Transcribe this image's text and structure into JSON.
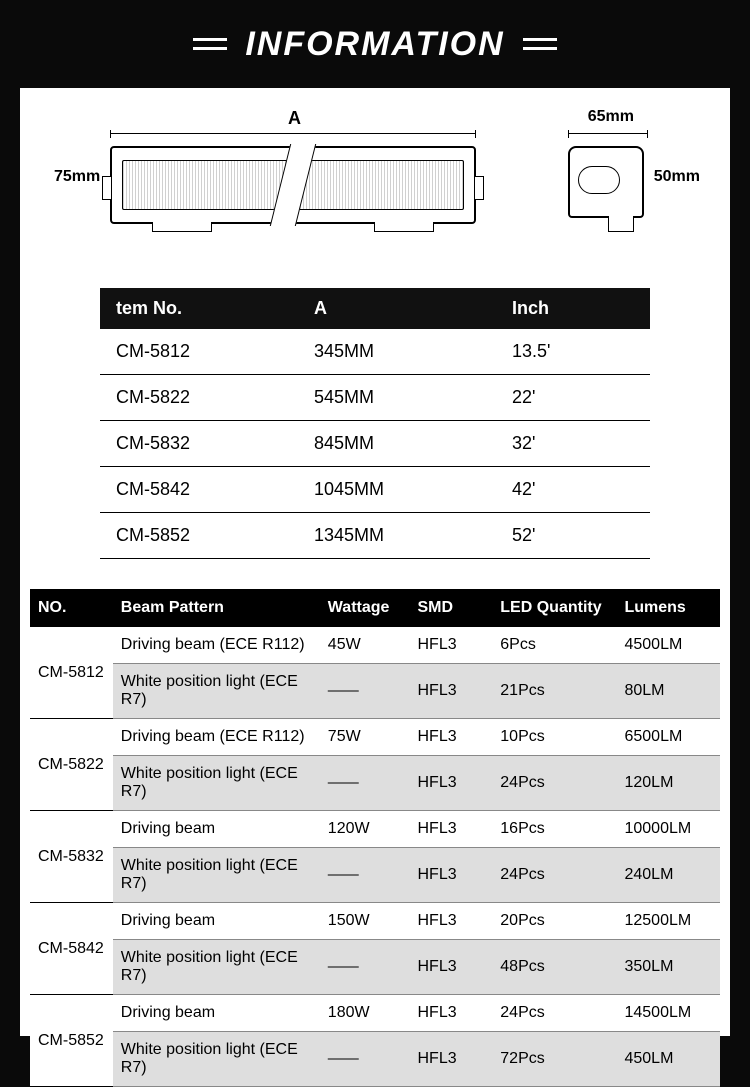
{
  "title": "INFORMATION",
  "diagram": {
    "label_A": "A",
    "label_65mm": "65mm",
    "label_75mm": "75mm",
    "label_50mm": "50mm"
  },
  "table1": {
    "headers": {
      "c1": "tem No.",
      "c2": "A",
      "c3": "Inch"
    },
    "rows": [
      {
        "no": "CM-5812",
        "a": "345MM",
        "inch": "13.5'"
      },
      {
        "no": "CM-5822",
        "a": "545MM",
        "inch": "22'"
      },
      {
        "no": "CM-5832",
        "a": "845MM",
        "inch": "32'"
      },
      {
        "no": "CM-5842",
        "a": "1045MM",
        "inch": "42'"
      },
      {
        "no": "CM-5852",
        "a": "1345MM",
        "inch": "52'"
      }
    ]
  },
  "table2": {
    "headers": {
      "no": "NO.",
      "beam": "Beam Pattern",
      "watt": "Wattage",
      "smd": "SMD",
      "ledq": "LED Quantity",
      "lumens": "Lumens"
    },
    "groups": [
      {
        "no": "CM-5812",
        "rows": [
          {
            "beam": "Driving beam (ECE R112)",
            "watt": "45W",
            "smd": "HFL3",
            "ledq": "6Pcs",
            "lumens": "4500LM"
          },
          {
            "beam": "White position light (ECE R7)",
            "watt": "—",
            "smd": "HFL3",
            "ledq": "21Pcs",
            "lumens": "80LM"
          }
        ]
      },
      {
        "no": "CM-5822",
        "rows": [
          {
            "beam": "Driving beam (ECE R112)",
            "watt": "75W",
            "smd": "HFL3",
            "ledq": "10Pcs",
            "lumens": "6500LM"
          },
          {
            "beam": "White position light (ECE R7)",
            "watt": "—",
            "smd": "HFL3",
            "ledq": "24Pcs",
            "lumens": "120LM"
          }
        ]
      },
      {
        "no": "CM-5832",
        "rows": [
          {
            "beam": "Driving beam",
            "watt": "120W",
            "smd": "HFL3",
            "ledq": "16Pcs",
            "lumens": "10000LM"
          },
          {
            "beam": "White position light (ECE R7)",
            "watt": "—",
            "smd": "HFL3",
            "ledq": "24Pcs",
            "lumens": "240LM"
          }
        ]
      },
      {
        "no": "CM-5842",
        "rows": [
          {
            "beam": "Driving beam",
            "watt": "150W",
            "smd": "HFL3",
            "ledq": "20Pcs",
            "lumens": "12500LM"
          },
          {
            "beam": "White position light (ECE R7)",
            "watt": "—",
            "smd": "HFL3",
            "ledq": "48Pcs",
            "lumens": "350LM"
          }
        ]
      },
      {
        "no": "CM-5852",
        "rows": [
          {
            "beam": "Driving beam",
            "watt": "180W",
            "smd": "HFL3",
            "ledq": "24Pcs",
            "lumens": "14500LM"
          },
          {
            "beam": "White position light (ECE R7)",
            "watt": "—",
            "smd": "HFL3",
            "ledq": "72Pcs",
            "lumens": "450LM"
          }
        ]
      }
    ]
  },
  "colors": {
    "page_bg": "#0a0a0a",
    "panel_bg": "#ffffff",
    "header_bg": "#000000",
    "header_text": "#ffffff",
    "row_grey": "#dedede",
    "border": "#000000"
  }
}
